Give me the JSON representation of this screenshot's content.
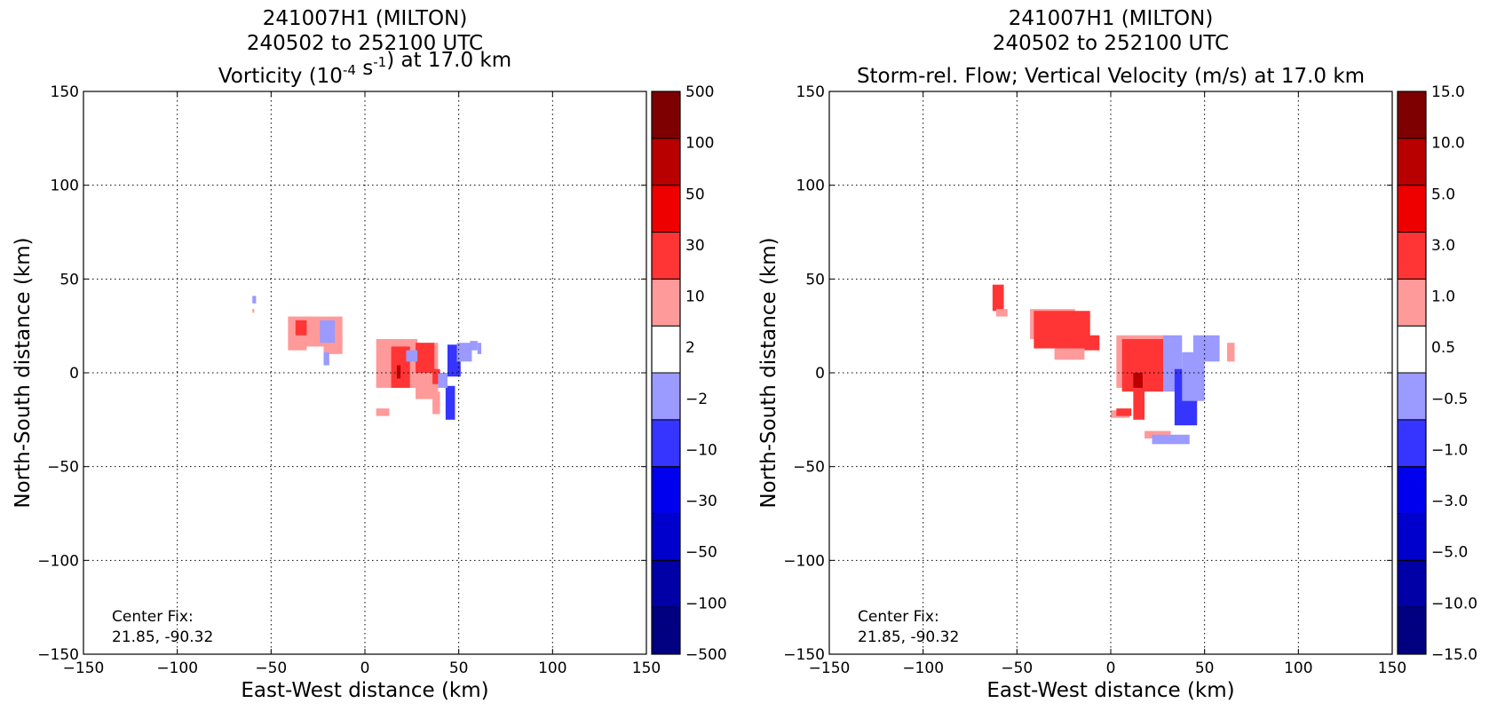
{
  "chart_data": [
    {
      "type": "heatmap",
      "title_lines": [
        "241007H1 (MILTON)",
        "240502 to 252100 UTC"
      ],
      "subtitle_parts": {
        "pre": "Vorticity (10",
        "exp1": "-4",
        "mid": " s",
        "exp2": "-1",
        "post": ") at 17.0 km"
      },
      "xlabel": "East-West distance (km)",
      "ylabel": "North-South distance (km)",
      "xlim": [
        -150,
        150
      ],
      "ylim": [
        -150,
        150
      ],
      "xticks": [
        -150,
        -100,
        -50,
        0,
        50,
        100,
        150
      ],
      "yticks": [
        -150,
        -100,
        -50,
        0,
        50,
        100,
        150
      ],
      "grid": true,
      "annotation": [
        "Center Fix:",
        "21.85, -90.32"
      ],
      "colorbar": {
        "labels": [
          "-500",
          "-100",
          "-50",
          "-30",
          "-10",
          "-2",
          "2",
          "10",
          "30",
          "50",
          "100",
          "500"
        ],
        "colors": [
          "#000080",
          "#0000a6",
          "#0000cd",
          "#0000ee",
          "#3535ff",
          "#9a9aff",
          "#ffffff",
          "#ff9a9a",
          "#ff3535",
          "#ee0000",
          "#b80000",
          "#7f0000"
        ]
      },
      "patches": [
        {
          "level": 5,
          "x": -60,
          "y": 37,
          "w": 2,
          "h": 4
        },
        {
          "level": 7,
          "x": -60,
          "y": 32,
          "w": 1,
          "h": 2
        },
        {
          "level": 7,
          "x": -41,
          "y": 12,
          "w": 10,
          "h": 18
        },
        {
          "level": 7,
          "x": -32,
          "y": 14,
          "w": 20,
          "h": 16
        },
        {
          "level": 7,
          "x": -22,
          "y": 10,
          "w": 10,
          "h": 10
        },
        {
          "level": 8,
          "x": -37,
          "y": 20,
          "w": 6,
          "h": 8
        },
        {
          "level": 5,
          "x": -24,
          "y": 16,
          "w": 8,
          "h": 12
        },
        {
          "level": 5,
          "x": -22,
          "y": 4,
          "w": 3,
          "h": 7
        },
        {
          "level": 7,
          "x": 6,
          "y": -8,
          "w": 22,
          "h": 26
        },
        {
          "level": 7,
          "x": 27,
          "y": -14,
          "w": 12,
          "h": 30
        },
        {
          "level": 8,
          "x": 14,
          "y": -8,
          "w": 10,
          "h": 22
        },
        {
          "level": 8,
          "x": 27,
          "y": 0,
          "w": 10,
          "h": 16
        },
        {
          "level": 8,
          "x": 36,
          "y": -6,
          "w": 4,
          "h": 8
        },
        {
          "level": 10,
          "x": 17,
          "y": -3,
          "w": 2,
          "h": 7
        },
        {
          "level": 5,
          "x": 22,
          "y": 6,
          "w": 6,
          "h": 6
        },
        {
          "level": 7,
          "x": 36,
          "y": -22,
          "w": 4,
          "h": 12
        },
        {
          "level": 7,
          "x": 6,
          "y": -23,
          "w": 7,
          "h": 4
        },
        {
          "level": 4,
          "x": 43,
          "y": -25,
          "w": 5,
          "h": 18
        },
        {
          "level": 4,
          "x": 44,
          "y": -2,
          "w": 7,
          "h": 17
        },
        {
          "level": 5,
          "x": 49,
          "y": 6,
          "w": 8,
          "h": 10
        },
        {
          "level": 5,
          "x": 39,
          "y": -8,
          "w": 5,
          "h": 8
        },
        {
          "level": 5,
          "x": 56,
          "y": 12,
          "w": 4,
          "h": 5
        },
        {
          "level": 5,
          "x": 60,
          "y": 10,
          "w": 2,
          "h": 6
        }
      ]
    },
    {
      "type": "heatmap",
      "title_lines": [
        "241007H1 (MILTON)",
        "240502 to 252100 UTC"
      ],
      "subtitle_parts": {
        "pre": "Storm-rel. Flow; Vertical Velocity (m/s) at 17.0 km",
        "exp1": "",
        "mid": "",
        "exp2": "",
        "post": ""
      },
      "xlabel": "East-West distance (km)",
      "ylabel": "North-South distance (km)",
      "xlim": [
        -150,
        150
      ],
      "ylim": [
        -150,
        150
      ],
      "xticks": [
        -150,
        -100,
        -50,
        0,
        50,
        100,
        150
      ],
      "yticks": [
        -150,
        -100,
        -50,
        0,
        50,
        100,
        150
      ],
      "grid": true,
      "annotation": [
        "Center Fix:",
        "21.85, -90.32"
      ],
      "colorbar": {
        "labels": [
          "-15.0",
          "-10.0",
          "-5.0",
          "-3.0",
          "-1.0",
          "-0.5",
          "0.5",
          "1.0",
          "3.0",
          "5.0",
          "10.0",
          "15.0"
        ],
        "colors": [
          "#000080",
          "#0000a6",
          "#0000cd",
          "#0000ee",
          "#3535ff",
          "#9a9aff",
          "#ffffff",
          "#ff9a9a",
          "#ff3535",
          "#ee0000",
          "#b80000",
          "#7f0000"
        ]
      },
      "patches": [
        {
          "level": 8,
          "x": -63,
          "y": 33,
          "w": 6,
          "h": 14
        },
        {
          "level": 7,
          "x": -61,
          "y": 30,
          "w": 6,
          "h": 4
        },
        {
          "level": 7,
          "x": -43,
          "y": 18,
          "w": 24,
          "h": 16
        },
        {
          "level": 8,
          "x": -41,
          "y": 13,
          "w": 30,
          "h": 20
        },
        {
          "level": 8,
          "x": -20,
          "y": 12,
          "w": 14,
          "h": 8
        },
        {
          "level": 7,
          "x": -30,
          "y": 7,
          "w": 16,
          "h": 6
        },
        {
          "level": 7,
          "x": 3,
          "y": -8,
          "w": 26,
          "h": 28
        },
        {
          "level": 8,
          "x": 6,
          "y": -10,
          "w": 22,
          "h": 28
        },
        {
          "level": 8,
          "x": 12,
          "y": -25,
          "w": 6,
          "h": 16
        },
        {
          "level": 10,
          "x": 12,
          "y": -8,
          "w": 5,
          "h": 8
        },
        {
          "level": 7,
          "x": 0,
          "y": -24,
          "w": 10,
          "h": 4
        },
        {
          "level": 8,
          "x": 3,
          "y": -23,
          "w": 8,
          "h": 4
        },
        {
          "level": 7,
          "x": 18,
          "y": -35,
          "w": 14,
          "h": 4
        },
        {
          "level": 5,
          "x": 28,
          "y": -10,
          "w": 10,
          "h": 30
        },
        {
          "level": 4,
          "x": 34,
          "y": -28,
          "w": 12,
          "h": 30
        },
        {
          "level": 5,
          "x": 38,
          "y": -15,
          "w": 12,
          "h": 26
        },
        {
          "level": 5,
          "x": 44,
          "y": 6,
          "w": 14,
          "h": 14
        },
        {
          "level": 5,
          "x": 22,
          "y": -38,
          "w": 20,
          "h": 5
        },
        {
          "level": 7,
          "x": 62,
          "y": 6,
          "w": 4,
          "h": 10
        }
      ]
    }
  ]
}
